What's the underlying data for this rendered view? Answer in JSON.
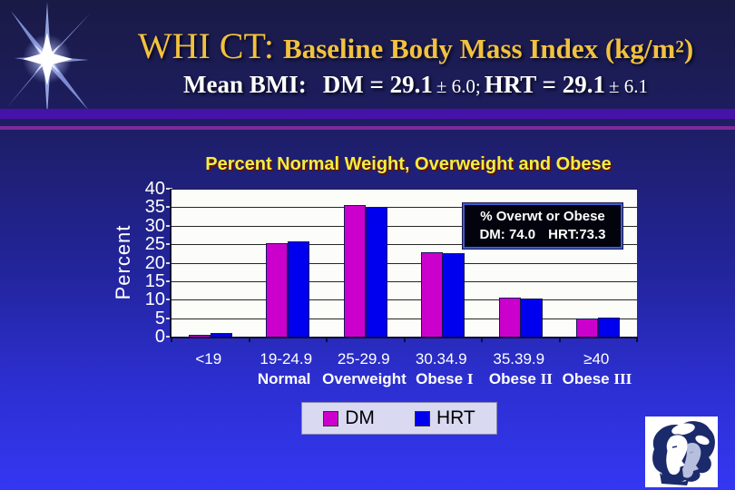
{
  "header": {
    "title_prefix": "WHI CT: ",
    "title_main": "Baseline Body Mass Index (kg/m",
    "title_sup": "2",
    "title_close": ")",
    "subtitle_label": "Mean BMI:",
    "subtitle_dm": "DM = 29.1",
    "subtitle_dm_pm": "± 6.0;",
    "subtitle_hrt": "HRT = 29.1",
    "subtitle_hrt_pm": "± 6.1"
  },
  "chart_data": {
    "type": "bar",
    "title": "Percent Normal Weight, Overweight and Obese",
    "ylabel": "Percent",
    "ylim": [
      0,
      40
    ],
    "yticks": [
      40,
      35,
      30,
      25,
      20,
      15,
      10,
      5,
      0
    ],
    "grid": true,
    "plot_background": "#fcfcf8",
    "categories": [
      "<19",
      "19-24.9",
      "25-29.9",
      "30.34.9",
      "35.39.9",
      "≥40"
    ],
    "class_labels": [
      {
        "text": "",
        "numeral": ""
      },
      {
        "text": "Normal",
        "numeral": ""
      },
      {
        "text": "Overweight",
        "numeral": ""
      },
      {
        "text": "Obese ",
        "numeral": "I"
      },
      {
        "text": "Obese ",
        "numeral": "II"
      },
      {
        "text": "Obese ",
        "numeral": "III"
      }
    ],
    "series": [
      {
        "name": "DM",
        "color": "#cc00cc",
        "values": [
          0.6,
          25.4,
          35.7,
          22.8,
          10.5,
          5.0
        ]
      },
      {
        "name": "HRT",
        "color": "#0000ee",
        "values": [
          1.0,
          25.7,
          35.0,
          22.7,
          10.4,
          5.2
        ]
      }
    ],
    "legend_position": "bottom"
  },
  "annotation": {
    "line1": "% Overwt or Obese",
    "dm": "DM: 74.0",
    "hrt": "HRT:73.3"
  },
  "colors": {
    "dm": "#cc00cc",
    "hrt": "#0000ee",
    "title_gold": "#f2c23e",
    "chart_title_yellow": "#f2ee40",
    "background_top": "#1a1a46",
    "background_bottom": "#3437f2",
    "divider_purple": "#4712a7",
    "divider_magenta": "#7c2b99"
  },
  "logos": {
    "top_left": "starburst",
    "bottom_right": "WHI women profiles"
  }
}
